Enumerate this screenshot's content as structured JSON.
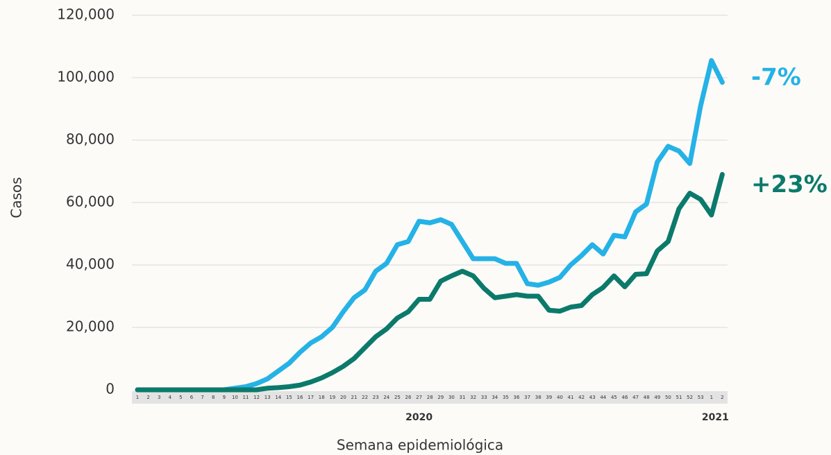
{
  "chart_data": {
    "type": "line",
    "y_label": "Casos",
    "x_label": "Semana epidemiológica",
    "categories": [
      "1",
      "2",
      "3",
      "4",
      "5",
      "6",
      "7",
      "8",
      "9",
      "10",
      "11",
      "12",
      "13",
      "14",
      "15",
      "16",
      "17",
      "18",
      "19",
      "20",
      "21",
      "22",
      "23",
      "24",
      "25",
      "26",
      "27",
      "28",
      "29",
      "30",
      "31",
      "32",
      "33",
      "34",
      "35",
      "36",
      "37",
      "38",
      "39",
      "40",
      "41",
      "42",
      "43",
      "44",
      "45",
      "46",
      "47",
      "48",
      "49",
      "50",
      "51",
      "52",
      "53",
      "1",
      "2"
    ],
    "year_groups": [
      {
        "label": "2020",
        "count": 53
      },
      {
        "label": "2021",
        "count": 2
      }
    ],
    "series": [
      {
        "color": "#25b2e6",
        "annotation": "-7%",
        "values": [
          0,
          0,
          0,
          0,
          0,
          0,
          0,
          0,
          0,
          500,
          1000,
          2000,
          3500,
          6000,
          8500,
          12000,
          15000,
          17000,
          20000,
          25000,
          29500,
          32000,
          38000,
          40500,
          46500,
          47500,
          54000,
          53500,
          54500,
          53000,
          47500,
          42000,
          42000,
          42000,
          40500,
          40500,
          34000,
          33500,
          34500,
          36000,
          40000,
          43000,
          46500,
          43500,
          49500,
          49000,
          57000,
          59500,
          73000,
          78000,
          76500,
          72500,
          91000,
          105500,
          98500
        ]
      },
      {
        "color": "#0b7a6b",
        "annotation": "+23%",
        "values": [
          0,
          0,
          0,
          0,
          0,
          0,
          0,
          0,
          0,
          0,
          0,
          0,
          500,
          700,
          1000,
          1500,
          2500,
          3800,
          5500,
          7500,
          10000,
          13500,
          17000,
          19500,
          23000,
          25000,
          29000,
          29000,
          34800,
          36500,
          38000,
          36500,
          32500,
          29500,
          30000,
          30500,
          30000,
          30000,
          25500,
          25200,
          26500,
          27000,
          30500,
          32800,
          36500,
          33000,
          37000,
          37200,
          44500,
          47500,
          58000,
          63000,
          61000,
          56000,
          69000
        ]
      }
    ],
    "ylim": [
      0,
      120000
    ],
    "yticks": [
      0,
      {
        "value": 20000,
        "label": "20,000"
      },
      {
        "value": 40000,
        "label": "40,000"
      },
      {
        "value": 60000,
        "label": "60,000"
      },
      {
        "value": 80000,
        "label": "80,000"
      },
      {
        "value": 100000,
        "label": "100,000"
      },
      {
        "value": 120000,
        "label": "120,000"
      }
    ],
    "grid": true
  }
}
